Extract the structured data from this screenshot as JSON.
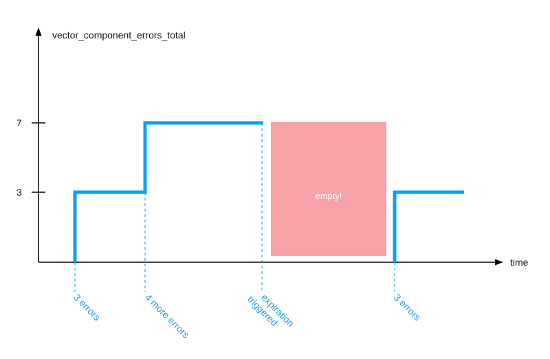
{
  "diagram": {
    "y_axis_label": "vector_component_errors_total",
    "x_axis_label": "time",
    "y_ticks": [
      "7",
      "3"
    ],
    "empty_label": "empty!",
    "annotations": [
      {
        "lines": [
          "3 errors"
        ]
      },
      {
        "lines": [
          "4 more errors"
        ]
      },
      {
        "lines": [
          "expiration",
          "triggered"
        ]
      },
      {
        "lines": [
          "3 errors"
        ]
      }
    ],
    "colors": {
      "step_line": "#0aa0f5",
      "annotation_text": "#1e9ef0",
      "empty_region": "#f7a1a9",
      "axis": "#000000"
    }
  }
}
